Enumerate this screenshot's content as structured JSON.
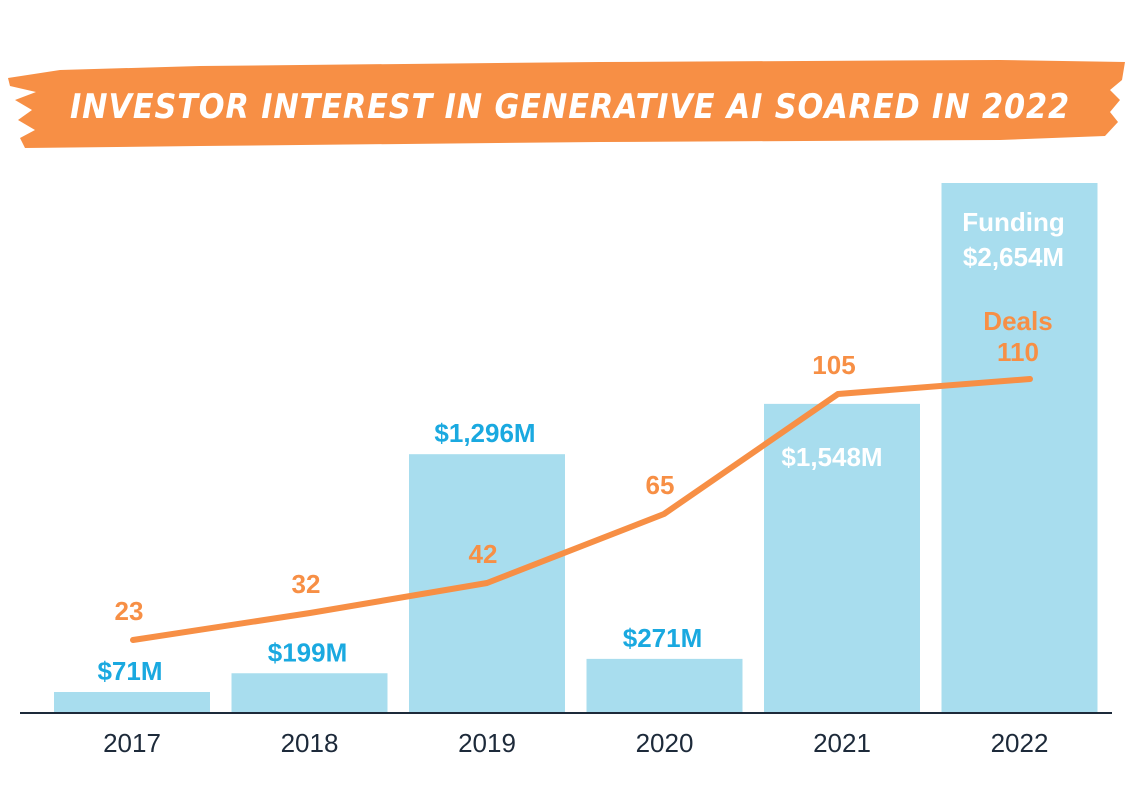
{
  "chart_data": {
    "type": "bar+line",
    "title": "INVESTOR INTEREST IN GENERATIVE AI SOARED IN 2022",
    "categories": [
      "2017",
      "2018",
      "2019",
      "2020",
      "2021",
      "2022"
    ],
    "series": [
      {
        "name": "Funding",
        "kind": "bar",
        "unit": "$M",
        "values": [
          71,
          199,
          1296,
          271,
          1548,
          2654
        ],
        "labels": [
          "$71M",
          "$199M",
          "$1,296M",
          "$271M",
          "$1,548M",
          "$2,654M"
        ]
      },
      {
        "name": "Deals",
        "kind": "line",
        "values": [
          23,
          32,
          42,
          65,
          105,
          110
        ],
        "labels": [
          "23",
          "32",
          "42",
          "65",
          "105",
          "110"
        ]
      }
    ],
    "legend": "inline labels on 2022 bar",
    "grid": false,
    "colors": {
      "bar": "#a8ddee",
      "bar_label": "#1aa9e0",
      "line": "#f78f45",
      "banner": "#f78f45",
      "axis": "#1d2a3a"
    }
  }
}
